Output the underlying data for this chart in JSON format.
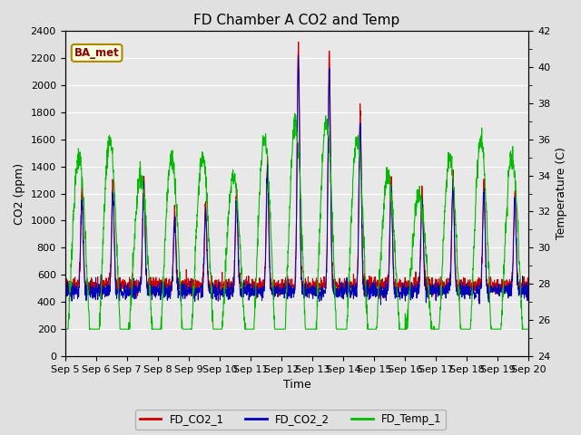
{
  "title": "FD Chamber A CO2 and Temp",
  "xlabel": "Time",
  "ylabel_left": "CO2 (ppm)",
  "ylabel_right": "Temperature (C)",
  "ylim_left": [
    0,
    2400
  ],
  "ylim_right": [
    24,
    42
  ],
  "yticks_left": [
    0,
    200,
    400,
    600,
    800,
    1000,
    1200,
    1400,
    1600,
    1800,
    2000,
    2200,
    2400
  ],
  "yticks_right": [
    24,
    26,
    28,
    30,
    32,
    34,
    36,
    38,
    40,
    42
  ],
  "xtick_labels": [
    "Sep 5",
    "Sep 6",
    "Sep 7",
    "Sep 8",
    "Sep 9",
    "Sep 10",
    "Sep 11",
    "Sep 12",
    "Sep 13",
    "Sep 14",
    "Sep 15",
    "Sep 16",
    "Sep 17",
    "Sep 18",
    "Sep 19",
    "Sep 20"
  ],
  "color_co2_1": "#cc0000",
  "color_co2_2": "#0000bb",
  "color_temp_1": "#00bb00",
  "legend_label_1": "FD_CO2_1",
  "legend_label_2": "FD_CO2_2",
  "legend_label_3": "FD_Temp_1",
  "annotation_text": "BA_met",
  "fig_bg_color": "#e0e0e0",
  "plot_bg_color": "#e8e8e8",
  "title_fontsize": 11,
  "label_fontsize": 9,
  "tick_fontsize": 8
}
